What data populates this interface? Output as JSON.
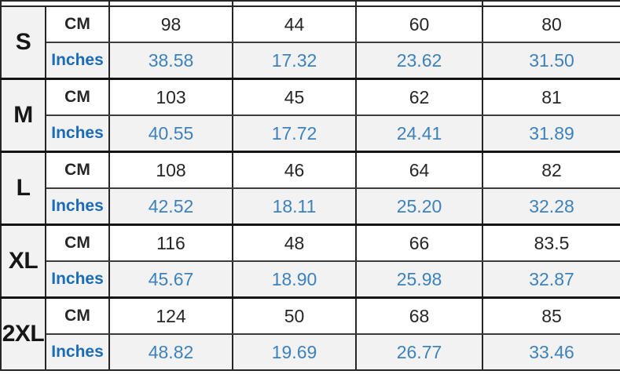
{
  "colors": {
    "cm_text": "#262626",
    "inches_value_text": "#3d82bd",
    "inches_label_text": "#1b6cb8",
    "alt_row_bg": "#f2f2f2",
    "row_bg": "#ffffff",
    "border": "#262626"
  },
  "table": {
    "unit_labels": {
      "cm": "CM",
      "inches": "Inches"
    },
    "sizes": [
      {
        "label": "S",
        "cm": [
          "98",
          "44",
          "60",
          "80"
        ],
        "inches": [
          "38.58",
          "17.32",
          "23.62",
          "31.50"
        ]
      },
      {
        "label": "M",
        "cm": [
          "103",
          "45",
          "62",
          "81"
        ],
        "inches": [
          "40.55",
          "17.72",
          "24.41",
          "31.89"
        ]
      },
      {
        "label": "L",
        "cm": [
          "108",
          "46",
          "64",
          "82"
        ],
        "inches": [
          "42.52",
          "18.11",
          "25.20",
          "32.28"
        ]
      },
      {
        "label": "XL",
        "cm": [
          "116",
          "48",
          "66",
          "83.5"
        ],
        "inches": [
          "45.67",
          "18.90",
          "25.98",
          "32.87"
        ]
      },
      {
        "label": "2XL",
        "cm": [
          "124",
          "50",
          "68",
          "85"
        ],
        "inches": [
          "48.82",
          "19.69",
          "26.77",
          "33.46"
        ]
      }
    ]
  }
}
